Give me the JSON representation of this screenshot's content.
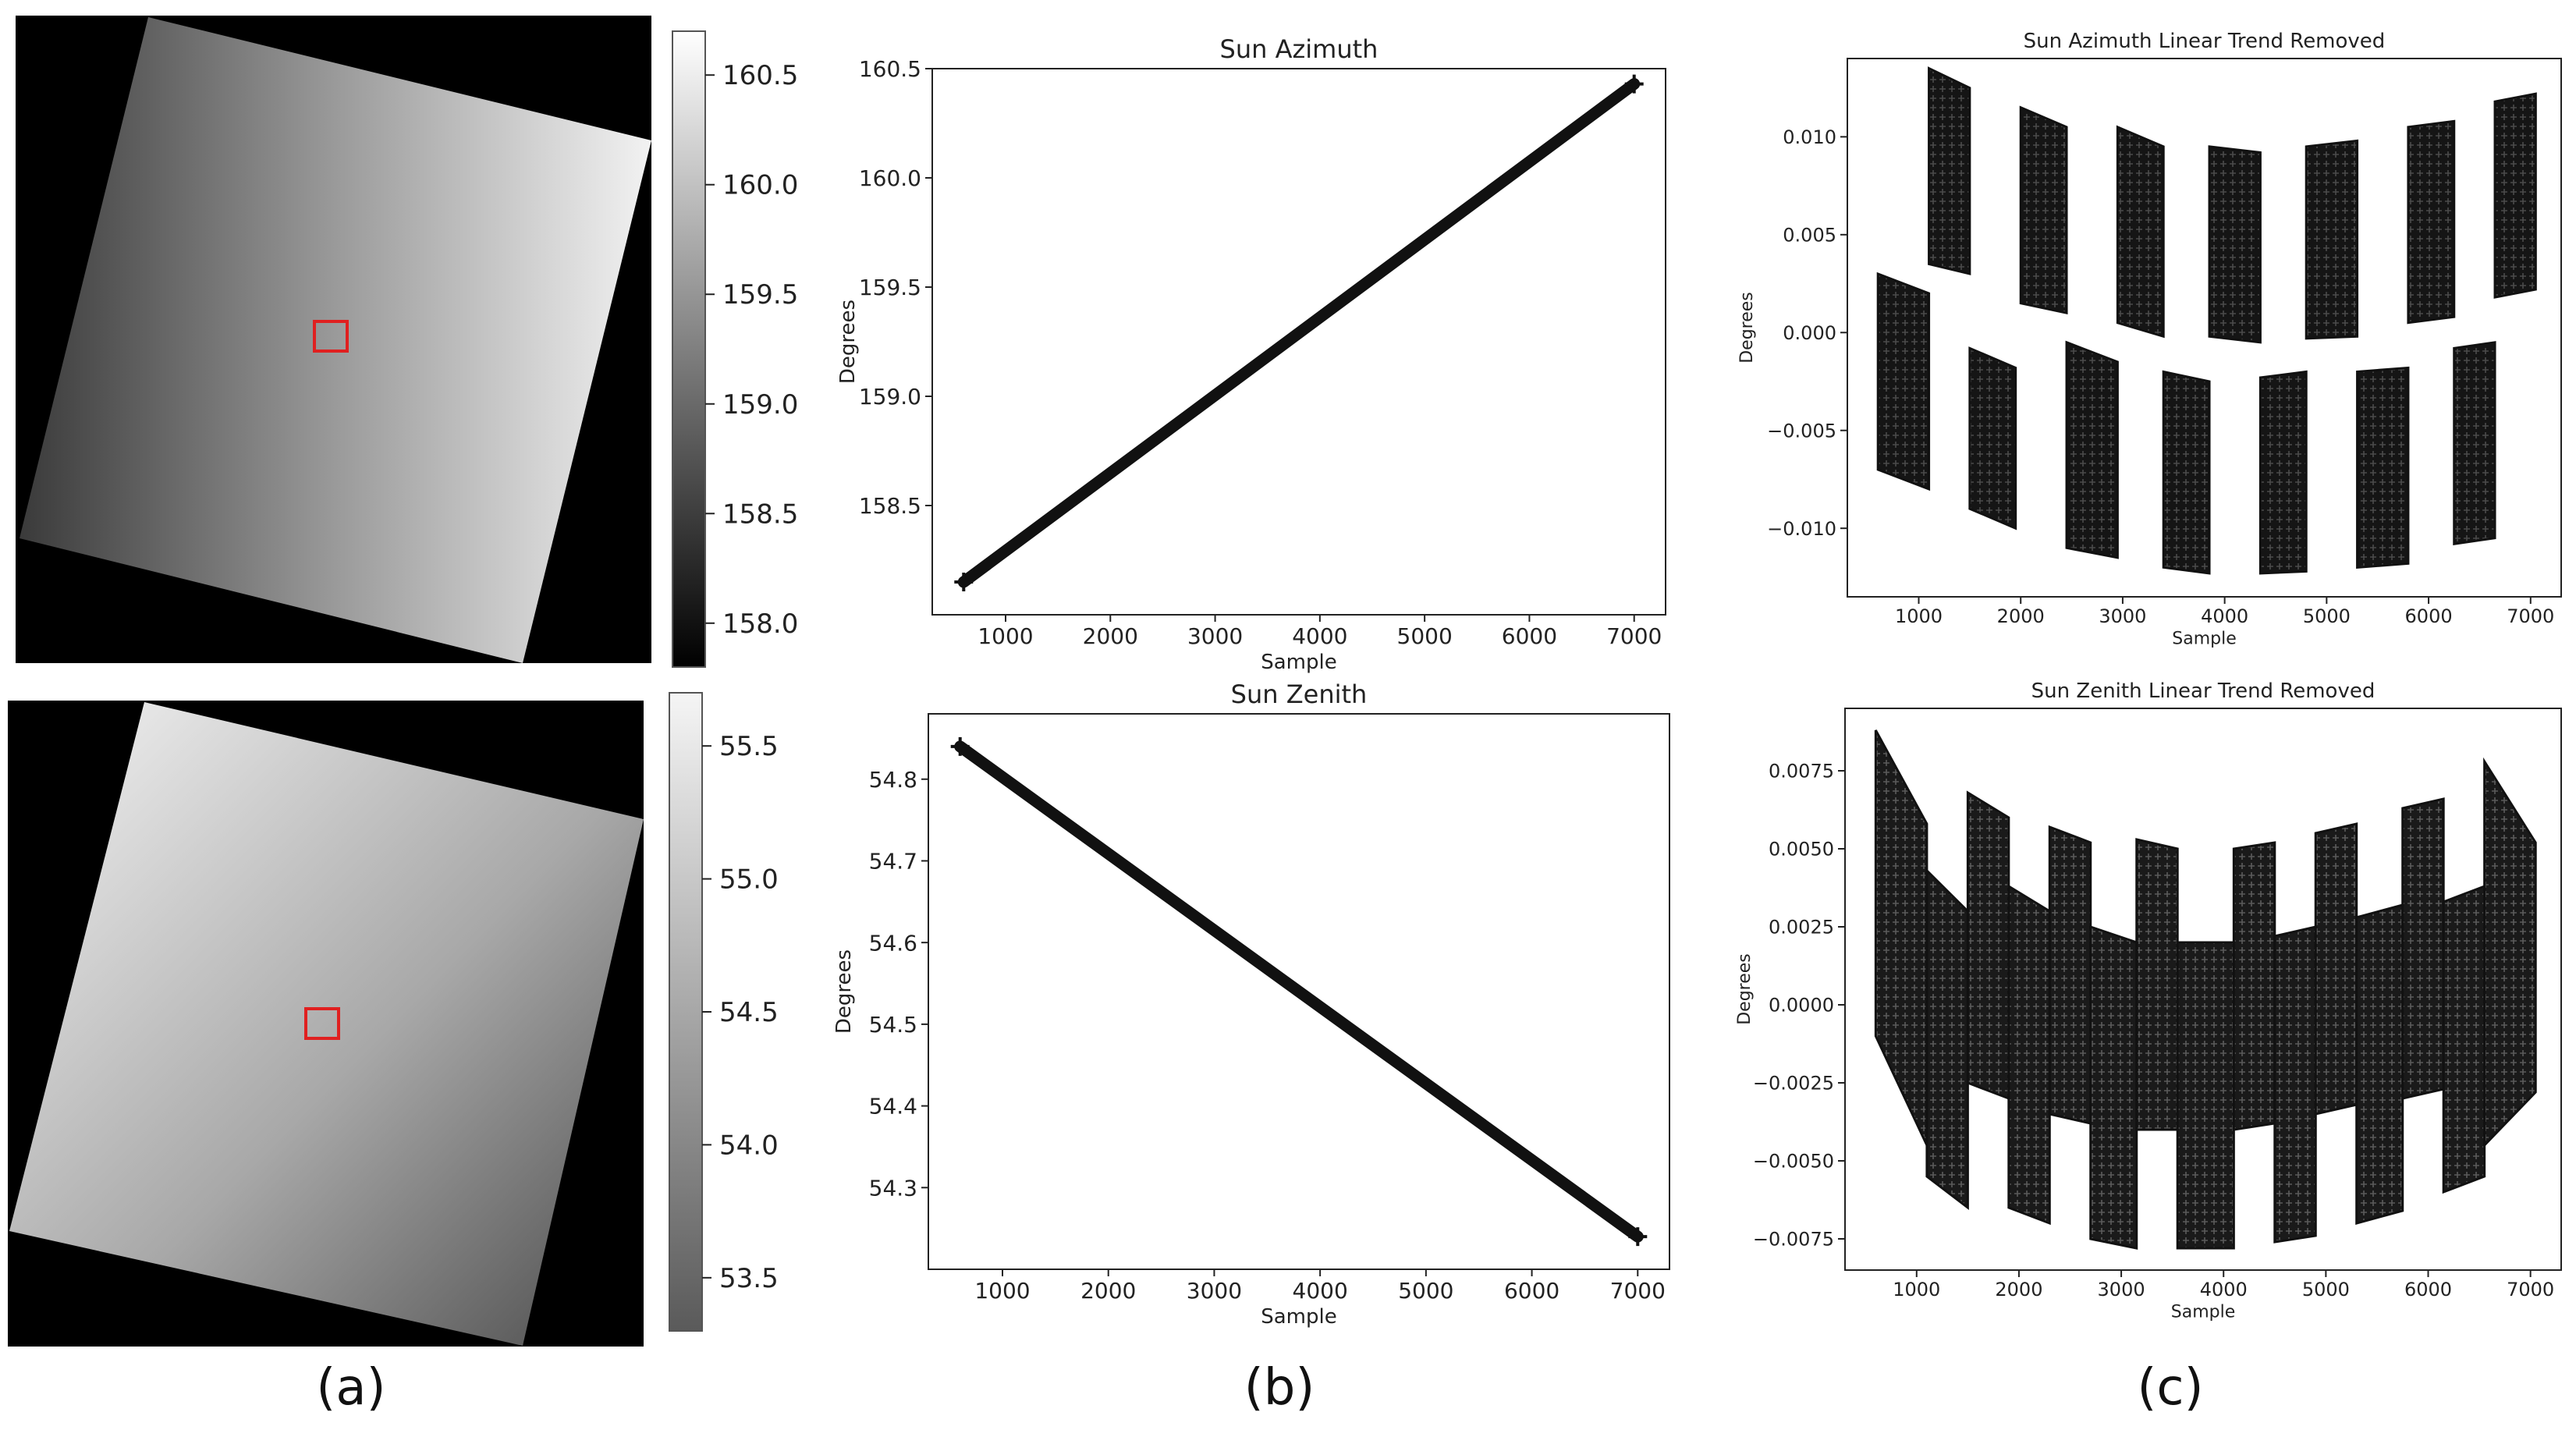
{
  "panel_labels": [
    "(a)",
    "(b)",
    "(c)"
  ],
  "colors": {
    "frame": "#000000",
    "marker": "#111111",
    "roi": "#e02020",
    "axis": "#222222"
  },
  "chart_data": [
    {
      "id": "a-top",
      "type": "heatmap",
      "title": "",
      "colorbar": {
        "ticks": [
          160.5,
          160.0,
          159.5,
          159.0,
          158.5,
          158.0
        ],
        "range": [
          157.8,
          160.7
        ],
        "colormap": "gray"
      },
      "gradient": "increasing left to right",
      "roi_marker": "red-square"
    },
    {
      "id": "a-bottom",
      "type": "heatmap",
      "title": "",
      "colorbar": {
        "ticks": [
          55.5,
          55.0,
          54.5,
          54.0,
          53.5
        ],
        "range": [
          53.3,
          55.7
        ],
        "colormap": "gray"
      },
      "gradient": "decreasing left to right",
      "roi_marker": "red-square"
    },
    {
      "id": "b-top",
      "type": "scatter",
      "title": "Sun Azimuth",
      "xlabel": "Sample",
      "ylabel": "Degrees",
      "xlim": [
        300,
        7300
      ],
      "ylim": [
        158.0,
        160.5
      ],
      "xticks": [
        1000,
        2000,
        3000,
        4000,
        5000,
        6000,
        7000
      ],
      "yticks": [
        158.5,
        159.0,
        159.5,
        160.0,
        160.5
      ],
      "series": [
        {
          "x": [
            600,
            7000
          ],
          "y": [
            158.15,
            160.43
          ]
        }
      ]
    },
    {
      "id": "b-bottom",
      "type": "scatter",
      "title": "Sun Zenith",
      "xlabel": "Sample",
      "ylabel": "Degrees",
      "xlim": [
        300,
        7300
      ],
      "ylim": [
        54.2,
        54.88
      ],
      "xticks": [
        1000,
        2000,
        3000,
        4000,
        5000,
        6000,
        7000
      ],
      "yticks": [
        54.3,
        54.4,
        54.5,
        54.6,
        54.7,
        54.8
      ],
      "series": [
        {
          "x": [
            600,
            7000
          ],
          "y": [
            54.84,
            54.24
          ]
        }
      ]
    },
    {
      "id": "c-top",
      "type": "scatter",
      "title": "Sun Azimuth Linear Trend Removed",
      "xlabel": "Sample",
      "ylabel": "Degrees",
      "xlim": [
        300,
        7300
      ],
      "ylim": [
        -0.0135,
        0.014
      ],
      "xticks": [
        1000,
        2000,
        3000,
        4000,
        5000,
        6000,
        7000
      ],
      "yticks": [
        0.01,
        0.005,
        0.0,
        -0.005,
        -0.01
      ],
      "ytick_labels": [
        "0.010",
        "0.005",
        "0.000",
        "−0.005",
        "−0.010"
      ],
      "blocks": [
        {
          "x0": 600,
          "x1": 1100,
          "top0": 0.003,
          "top1": 0.002,
          "bot0": -0.007,
          "bot1": -0.008
        },
        {
          "x0": 1100,
          "x1": 1500,
          "top0": 0.0135,
          "top1": 0.0125,
          "bot0": 0.0035,
          "bot1": 0.003
        },
        {
          "x0": 1500,
          "x1": 1950,
          "top0": -0.0008,
          "top1": -0.0018,
          "bot0": -0.009,
          "bot1": -0.01
        },
        {
          "x0": 2000,
          "x1": 2450,
          "top0": 0.0115,
          "top1": 0.0105,
          "bot0": 0.0015,
          "bot1": 0.001
        },
        {
          "x0": 2450,
          "x1": 2950,
          "top0": -0.0005,
          "top1": -0.0015,
          "bot0": -0.011,
          "bot1": -0.0115
        },
        {
          "x0": 2950,
          "x1": 3400,
          "top0": 0.0105,
          "top1": 0.0095,
          "bot0": 0.0005,
          "bot1": -0.0002
        },
        {
          "x0": 3400,
          "x1": 3850,
          "top0": -0.002,
          "top1": -0.0025,
          "bot0": -0.012,
          "bot1": -0.0123
        },
        {
          "x0": 3850,
          "x1": 4350,
          "top0": 0.0095,
          "top1": 0.0092,
          "bot0": -0.0002,
          "bot1": -0.0005
        },
        {
          "x0": 4350,
          "x1": 4800,
          "top0": -0.0023,
          "top1": -0.002,
          "bot0": -0.0123,
          "bot1": -0.0122
        },
        {
          "x0": 4800,
          "x1": 5300,
          "top0": 0.0095,
          "top1": 0.0098,
          "bot0": -0.0003,
          "bot1": -0.0002
        },
        {
          "x0": 5300,
          "x1": 5800,
          "top0": -0.002,
          "top1": -0.0018,
          "bot0": -0.012,
          "bot1": -0.0118
        },
        {
          "x0": 5800,
          "x1": 6250,
          "top0": 0.0105,
          "top1": 0.0108,
          "bot0": 0.0005,
          "bot1": 0.0008
        },
        {
          "x0": 6250,
          "x1": 6650,
          "top0": -0.0008,
          "top1": -0.0005,
          "bot0": -0.0108,
          "bot1": -0.0105
        },
        {
          "x0": 6650,
          "x1": 7050,
          "top0": 0.0118,
          "top1": 0.0122,
          "bot0": 0.0018,
          "bot1": 0.0022
        }
      ]
    },
    {
      "id": "c-bottom",
      "type": "scatter",
      "title": "Sun Zenith Linear Trend Removed",
      "xlabel": "Sample",
      "ylabel": "Degrees",
      "xlim": [
        300,
        7300
      ],
      "ylim": [
        -0.0085,
        0.0095
      ],
      "xticks": [
        1000,
        2000,
        3000,
        4000,
        5000,
        6000,
        7000
      ],
      "yticks": [
        0.0075,
        0.005,
        0.0025,
        0.0,
        -0.0025,
        -0.005,
        -0.0075
      ],
      "ytick_labels": [
        "0.0075",
        "0.0050",
        "0.0025",
        "0.0000",
        "−0.0025",
        "−0.0050",
        "−0.0075"
      ],
      "blocks": [
        {
          "x0": 600,
          "x1": 1100,
          "top0": 0.0088,
          "top1": 0.0058,
          "bot0": -0.001,
          "bot1": -0.0045
        },
        {
          "x0": 1100,
          "x1": 1500,
          "top0": 0.0043,
          "top1": 0.003,
          "bot0": -0.0055,
          "bot1": -0.0065
        },
        {
          "x0": 1500,
          "x1": 1900,
          "top0": 0.0068,
          "top1": 0.006,
          "bot0": -0.0025,
          "bot1": -0.003
        },
        {
          "x0": 1900,
          "x1": 2300,
          "top0": 0.0038,
          "top1": 0.003,
          "bot0": -0.0065,
          "bot1": -0.007
        },
        {
          "x0": 2300,
          "x1": 2700,
          "top0": 0.0057,
          "top1": 0.0052,
          "bot0": -0.0035,
          "bot1": -0.0038
        },
        {
          "x0": 2700,
          "x1": 3150,
          "top0": 0.0025,
          "top1": 0.002,
          "bot0": -0.0075,
          "bot1": -0.0078
        },
        {
          "x0": 3150,
          "x1": 3550,
          "top0": 0.0053,
          "top1": 0.005,
          "bot0": -0.004,
          "bot1": -0.004
        },
        {
          "x0": 3550,
          "x1": 4100,
          "top0": 0.002,
          "top1": 0.002,
          "bot0": -0.0078,
          "bot1": -0.0078
        },
        {
          "x0": 4100,
          "x1": 4500,
          "top0": 0.005,
          "top1": 0.0052,
          "bot0": -0.004,
          "bot1": -0.0038
        },
        {
          "x0": 4500,
          "x1": 4900,
          "top0": 0.0022,
          "top1": 0.0025,
          "bot0": -0.0076,
          "bot1": -0.0074
        },
        {
          "x0": 4900,
          "x1": 5300,
          "top0": 0.0055,
          "top1": 0.0058,
          "bot0": -0.0035,
          "bot1": -0.0032
        },
        {
          "x0": 5300,
          "x1": 5750,
          "top0": 0.0028,
          "top1": 0.0032,
          "bot0": -0.007,
          "bot1": -0.0066
        },
        {
          "x0": 5750,
          "x1": 6150,
          "top0": 0.0063,
          "top1": 0.0066,
          "bot0": -0.003,
          "bot1": -0.0027
        },
        {
          "x0": 6150,
          "x1": 6550,
          "top0": 0.0033,
          "top1": 0.0038,
          "bot0": -0.006,
          "bot1": -0.0055
        },
        {
          "x0": 6550,
          "x1": 7050,
          "top0": 0.0078,
          "top1": 0.0052,
          "bot0": -0.0045,
          "bot1": -0.0028
        }
      ]
    }
  ]
}
